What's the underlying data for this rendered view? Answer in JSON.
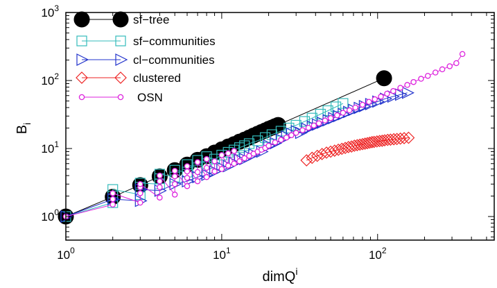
{
  "chart_data": {
    "type": "scatter",
    "title": "",
    "xlabel": {
      "main": "dimQ",
      "sup": "i"
    },
    "ylabel": {
      "main": "B",
      "sub": "i"
    },
    "xscale": "log",
    "yscale": "log",
    "xlim": [
      1,
      560
    ],
    "ylim": [
      0.45,
      1000
    ],
    "grid": false,
    "legend_position": "top-left",
    "x_ticks": [
      {
        "value": 1,
        "base": "10",
        "exp": "0"
      },
      {
        "value": 10,
        "base": "10",
        "exp": "1"
      },
      {
        "value": 100,
        "base": "10",
        "exp": "2"
      }
    ],
    "y_ticks": [
      {
        "value": 1,
        "base": "10",
        "exp": "0"
      },
      {
        "value": 10,
        "base": "10",
        "exp": "1"
      },
      {
        "value": 100,
        "base": "10",
        "exp": "2"
      },
      {
        "value": 1000,
        "base": "10",
        "exp": "3"
      }
    ],
    "series": [
      {
        "name": "sf−tree",
        "marker": "big-circle",
        "color": "#000000",
        "line_color": "#000000",
        "x": [
          1,
          2,
          3,
          4,
          5,
          6,
          7,
          8,
          9,
          10,
          11,
          12,
          13,
          14,
          15,
          16,
          17,
          18,
          19,
          20,
          21,
          22,
          23,
          110
        ],
        "y": [
          1.0,
          1.95,
          2.9,
          3.9,
          4.8,
          5.8,
          6.8,
          7.7,
          8.7,
          9.7,
          10.7,
          11.6,
          12.6,
          13.5,
          14.5,
          15.5,
          16.5,
          17.5,
          18.4,
          19.4,
          20.3,
          21.3,
          22.2,
          108
        ]
      },
      {
        "name": "sf−communities",
        "marker": "square",
        "color": "#33bbbb",
        "line_color": "#33bbbb",
        "x": [
          1,
          2,
          2,
          2,
          3,
          3,
          3,
          4,
          4,
          4,
          5,
          5,
          6,
          6,
          7,
          7,
          8,
          8,
          9,
          10,
          11,
          12,
          13,
          14,
          15,
          17,
          19,
          21,
          24,
          27,
          30,
          34,
          38,
          43,
          48,
          54,
          60
        ],
        "y": [
          1.0,
          1.6,
          2.0,
          2.5,
          2.1,
          2.7,
          3.1,
          3.0,
          3.6,
          4.2,
          3.8,
          4.8,
          4.5,
          5.8,
          5.2,
          6.7,
          6.0,
          7.6,
          7.0,
          8.0,
          8.8,
          9.5,
          10.3,
          11.0,
          11.8,
          13.0,
          14.5,
          16.0,
          18.0,
          20.0,
          22.0,
          25.0,
          28.0,
          32.0,
          36.0,
          41.0,
          46.0
        ]
      },
      {
        "name": "cl−communities",
        "marker": "triangle-right",
        "color": "#2233cc",
        "line_color": "#2233cc",
        "x": [
          1,
          2,
          3,
          3,
          4,
          5,
          6,
          7,
          8,
          9,
          10,
          11,
          12,
          13,
          14,
          15,
          16,
          18,
          20,
          22,
          24,
          26,
          28,
          30,
          32,
          35,
          38,
          41,
          44,
          48,
          52,
          56,
          60,
          65,
          70,
          76,
          82,
          90,
          100,
          112,
          125,
          140,
          155
        ],
        "y": [
          1.0,
          1.8,
          1.7,
          2.5,
          2.4,
          3.0,
          3.3,
          3.8,
          4.1,
          4.6,
          5.2,
          5.5,
          6.1,
          6.8,
          7.0,
          7.6,
          8.2,
          9.0,
          11.0,
          12.0,
          13.5,
          15.0,
          16.5,
          18.0,
          17.0,
          19.5,
          21.0,
          22.5,
          24.0,
          26.0,
          28.0,
          30.0,
          32.0,
          34.5,
          37.0,
          39.5,
          42.0,
          45.0,
          49.0,
          54.0,
          58.0,
          62.0,
          66.0
        ]
      },
      {
        "name": "clustered",
        "marker": "diamond",
        "color": "#ee2222",
        "line_color": "#ee2222",
        "x": [
          35,
          38,
          41,
          44,
          47,
          50,
          53,
          56,
          59,
          62,
          65,
          68,
          71,
          74,
          77,
          80,
          83,
          86,
          89,
          92,
          95,
          99,
          103,
          107,
          111,
          116,
          121,
          127,
          133,
          140,
          148,
          158
        ],
        "y": [
          6.7,
          7.3,
          7.8,
          8.3,
          8.7,
          9.0,
          9.3,
          9.6,
          9.9,
          10.2,
          10.5,
          10.7,
          11.0,
          11.2,
          11.4,
          11.6,
          11.8,
          12.0,
          12.2,
          12.4,
          12.5,
          12.7,
          12.9,
          13.0,
          13.2,
          13.4,
          13.5,
          13.7,
          13.8,
          14.0,
          14.2,
          14.4
        ]
      },
      {
        "name": "OSN",
        "marker": "small-circle",
        "color": "#dd22dd",
        "line_color": "#dd22dd",
        "x": [
          1,
          2,
          2,
          2,
          3,
          3,
          3,
          3,
          4,
          4,
          4,
          4,
          5,
          5,
          5,
          5,
          6,
          6,
          6,
          6,
          7,
          7,
          7,
          8,
          8,
          8,
          9,
          9,
          10,
          10,
          11,
          11,
          12,
          12,
          13,
          14,
          15,
          16,
          17,
          18,
          19,
          20,
          22,
          24,
          26,
          28,
          30,
          33,
          36,
          39,
          42,
          46,
          50,
          55,
          60,
          66,
          72,
          80,
          88,
          96,
          105,
          115,
          126,
          140,
          155,
          170,
          190,
          210,
          235,
          260,
          290,
          320,
          350
        ],
        "y": [
          1.0,
          1.5,
          1.8,
          2.2,
          1.6,
          2.2,
          2.7,
          3.0,
          1.9,
          2.7,
          3.3,
          4.0,
          2.1,
          3.0,
          3.9,
          4.7,
          2.8,
          3.7,
          4.6,
          5.5,
          3.3,
          4.5,
          6.3,
          3.8,
          5.2,
          7.0,
          4.6,
          6.5,
          5.0,
          8.0,
          5.6,
          8.5,
          6.0,
          9.2,
          6.5,
          7.2,
          7.8,
          8.4,
          9.0,
          9.6,
          10.2,
          11.0,
          12.3,
          13.4,
          14.5,
          15.7,
          17.0,
          18.6,
          20.2,
          21.8,
          23.5,
          25.8,
          28.0,
          30.8,
          33.5,
          36.5,
          40.0,
          44.0,
          48.5,
          53.0,
          58.0,
          64.0,
          70.0,
          78.0,
          86.0,
          95.0,
          106.0,
          117.0,
          131.0,
          146.0,
          162.0,
          180.0,
          245.0
        ]
      }
    ]
  }
}
